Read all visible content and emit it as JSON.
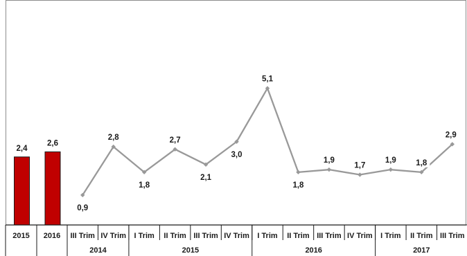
{
  "chart_data": {
    "type": "bar+line",
    "title": "",
    "xlabel": "",
    "ylabel": "",
    "ylim": [
      0,
      6
    ],
    "grid": false,
    "legend": "none",
    "annual": {
      "type": "bar",
      "categories": [
        "2015",
        "2016"
      ],
      "values": [
        "2,4",
        "2,6"
      ],
      "numeric": [
        2.4,
        2.6
      ],
      "color": "#c00000"
    },
    "quarterly": {
      "type": "line",
      "categories": [
        "III Trim",
        "IV Trim",
        "I Trim",
        "II Trim",
        "III Trim",
        "IV Trim",
        "I Trim",
        "II Trim",
        "III Trim",
        "IV Trim",
        "I Trim",
        "II Trim",
        "III Trim"
      ],
      "years": [
        {
          "label": "2014",
          "span": 2
        },
        {
          "label": "2015",
          "span": 4
        },
        {
          "label": "2016",
          "span": 4
        },
        {
          "label": "2017",
          "span": 3
        }
      ],
      "values": [
        "0,9",
        "2,8",
        "1,8",
        "2,7",
        "2,1",
        "3,0",
        "5,1",
        "1,8",
        "1,9",
        "1,7",
        "1,9",
        "1,8",
        "2,9"
      ],
      "numeric": [
        0.9,
        2.8,
        1.8,
        2.7,
        2.1,
        3.0,
        5.1,
        1.8,
        1.9,
        1.7,
        1.9,
        1.8,
        2.9
      ],
      "label_position": [
        "below",
        "above",
        "below",
        "above",
        "below",
        "below",
        "above",
        "below",
        "above",
        "above",
        "above",
        "above",
        "above"
      ],
      "color": "#999999"
    }
  }
}
